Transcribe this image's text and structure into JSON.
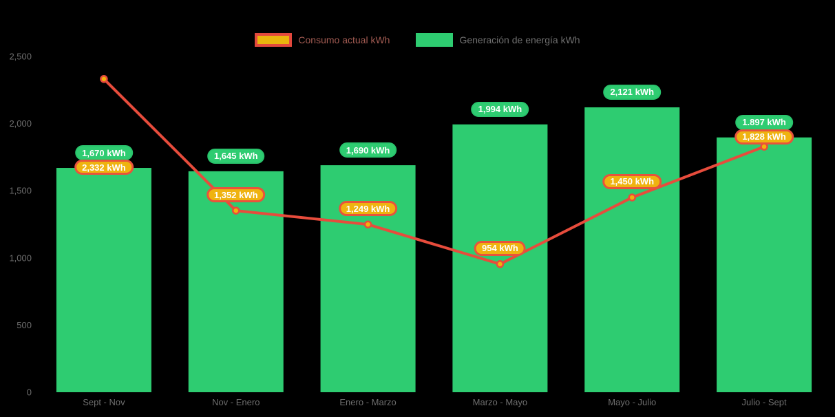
{
  "chart_data": {
    "type": "bar",
    "title": "",
    "categories": [
      "Sept - Nov",
      "Nov - Enero",
      "Enero - Marzo",
      "Marzo - Mayo",
      "Mayo - Julio",
      "Julio - Sept"
    ],
    "series": [
      {
        "name": "Consumo actual kWh",
        "type": "line",
        "values": [
          2332,
          1352,
          1249,
          954,
          1450,
          1828
        ],
        "labels": [
          "2,332 kWh",
          "1,352 kWh",
          "1,249 kWh",
          "954 kWh",
          "1,450 kWh",
          "1,828 kWh"
        ]
      },
      {
        "name": "Generación de energía kWh",
        "type": "bar",
        "values": [
          1670,
          1645,
          1690,
          1994,
          2121,
          1897
        ],
        "labels": [
          "1,670 kWh",
          "1,645 kWh",
          "1,690 kWh",
          "1,994 kWh",
          "2,121 kWh",
          "1.897 kWh"
        ]
      }
    ],
    "xlabel": "",
    "ylabel": "",
    "ylim": [
      0,
      2500
    ],
    "yticks": [
      {
        "value": 0,
        "label": "0"
      },
      {
        "value": 500,
        "label": "500"
      },
      {
        "value": 1000,
        "label": "1,000"
      },
      {
        "value": 1500,
        "label": "1,500"
      },
      {
        "value": 2000,
        "label": "2,000"
      },
      {
        "value": 2500,
        "label": "2,500"
      }
    ],
    "grid": false,
    "legend_position": "top"
  },
  "colors": {
    "background": "#000000",
    "bar_green": "#2ecc71",
    "bar_label_bg": "#2ecc71",
    "line_red": "#e74c3c",
    "point_fill": "#f2b20b",
    "point_label_bg": "#efb310",
    "point_label_border": "#e8533c",
    "value_label_text": "#ffffff",
    "axis_text": "#6e6e6e",
    "legend_text_consumo": "#a25b52",
    "legend_text_generacion": "#6f6f6f"
  }
}
